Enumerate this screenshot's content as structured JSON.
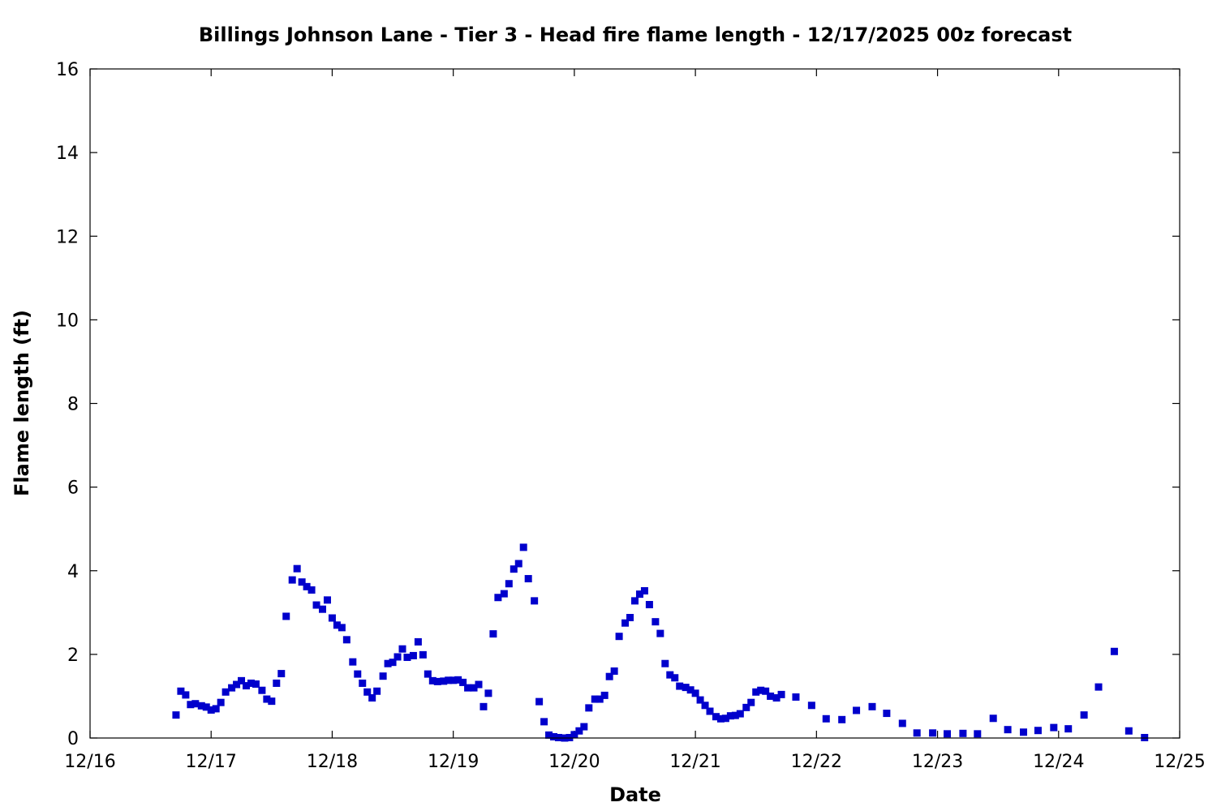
{
  "chart_data": {
    "type": "scatter",
    "title": "Billings Johnson Lane - Tier 3 - Head fire flame length - 12/17/2025 00z forecast",
    "xlabel": "Date",
    "ylabel": "Flame length (ft)",
    "x_unit": "days in December 2025",
    "xlim": [
      16,
      25
    ],
    "ylim": [
      0,
      16
    ],
    "x_ticks": [
      {
        "value": 16,
        "label": "12/16"
      },
      {
        "value": 17,
        "label": "12/17"
      },
      {
        "value": 18,
        "label": "12/18"
      },
      {
        "value": 19,
        "label": "12/19"
      },
      {
        "value": 20,
        "label": "12/20"
      },
      {
        "value": 21,
        "label": "12/21"
      },
      {
        "value": 22,
        "label": "12/22"
      },
      {
        "value": 23,
        "label": "12/23"
      },
      {
        "value": 24,
        "label": "12/24"
      },
      {
        "value": 25,
        "label": "12/25"
      }
    ],
    "y_ticks": [
      {
        "value": 0,
        "label": "0"
      },
      {
        "value": 2,
        "label": "2"
      },
      {
        "value": 4,
        "label": "4"
      },
      {
        "value": 6,
        "label": "6"
      },
      {
        "value": 8,
        "label": "8"
      },
      {
        "value": 10,
        "label": "10"
      },
      {
        "value": 12,
        "label": "12"
      },
      {
        "value": 14,
        "label": "14"
      },
      {
        "value": 16,
        "label": "16"
      }
    ],
    "grid": false,
    "marker_color": "#0000cc",
    "series": [
      {
        "points": [
          [
            16.71,
            0.55
          ],
          [
            16.75,
            1.12
          ],
          [
            16.79,
            1.03
          ],
          [
            16.83,
            0.8
          ],
          [
            16.87,
            0.82
          ],
          [
            16.92,
            0.77
          ],
          [
            16.96,
            0.74
          ],
          [
            17.0,
            0.67
          ],
          [
            17.04,
            0.7
          ],
          [
            17.08,
            0.85
          ],
          [
            17.12,
            1.1
          ],
          [
            17.17,
            1.2
          ],
          [
            17.21,
            1.28
          ],
          [
            17.25,
            1.37
          ],
          [
            17.29,
            1.25
          ],
          [
            17.33,
            1.31
          ],
          [
            17.37,
            1.29
          ],
          [
            17.42,
            1.14
          ],
          [
            17.46,
            0.93
          ],
          [
            17.5,
            0.88
          ],
          [
            17.54,
            1.31
          ],
          [
            17.58,
            1.54
          ],
          [
            17.62,
            2.91
          ],
          [
            17.67,
            3.78
          ],
          [
            17.71,
            4.05
          ],
          [
            17.75,
            3.73
          ],
          [
            17.79,
            3.62
          ],
          [
            17.83,
            3.54
          ],
          [
            17.87,
            3.18
          ],
          [
            17.92,
            3.08
          ],
          [
            17.96,
            3.3
          ],
          [
            18.0,
            2.87
          ],
          [
            18.04,
            2.7
          ],
          [
            18.08,
            2.64
          ],
          [
            18.12,
            2.35
          ],
          [
            18.17,
            1.82
          ],
          [
            18.21,
            1.53
          ],
          [
            18.25,
            1.31
          ],
          [
            18.29,
            1.1
          ],
          [
            18.33,
            0.96
          ],
          [
            18.37,
            1.12
          ],
          [
            18.42,
            1.48
          ],
          [
            18.46,
            1.78
          ],
          [
            18.5,
            1.81
          ],
          [
            18.54,
            1.94
          ],
          [
            18.58,
            2.13
          ],
          [
            18.62,
            1.93
          ],
          [
            18.67,
            1.97
          ],
          [
            18.71,
            2.3
          ],
          [
            18.75,
            1.99
          ],
          [
            18.79,
            1.53
          ],
          [
            18.83,
            1.37
          ],
          [
            18.87,
            1.35
          ],
          [
            18.92,
            1.36
          ],
          [
            18.96,
            1.38
          ],
          [
            19.0,
            1.38
          ],
          [
            19.04,
            1.39
          ],
          [
            19.08,
            1.33
          ],
          [
            19.12,
            1.2
          ],
          [
            19.17,
            1.2
          ],
          [
            19.21,
            1.28
          ],
          [
            19.25,
            0.75
          ],
          [
            19.29,
            1.07
          ],
          [
            19.33,
            2.49
          ],
          [
            19.37,
            3.36
          ],
          [
            19.42,
            3.45
          ],
          [
            19.46,
            3.69
          ],
          [
            19.5,
            4.04
          ],
          [
            19.54,
            4.17
          ],
          [
            19.58,
            4.56
          ],
          [
            19.62,
            3.81
          ],
          [
            19.67,
            3.28
          ],
          [
            19.71,
            0.87
          ],
          [
            19.75,
            0.39
          ],
          [
            19.79,
            0.07
          ],
          [
            19.83,
            0.03
          ],
          [
            19.87,
            0.01
          ],
          [
            19.92,
            0.0
          ],
          [
            19.96,
            0.01
          ],
          [
            20.0,
            0.08
          ],
          [
            20.04,
            0.17
          ],
          [
            20.08,
            0.27
          ],
          [
            20.12,
            0.72
          ],
          [
            20.17,
            0.93
          ],
          [
            20.21,
            0.93
          ],
          [
            20.25,
            1.02
          ],
          [
            20.29,
            1.47
          ],
          [
            20.33,
            1.6
          ],
          [
            20.37,
            2.43
          ],
          [
            20.42,
            2.75
          ],
          [
            20.46,
            2.88
          ],
          [
            20.5,
            3.28
          ],
          [
            20.54,
            3.44
          ],
          [
            20.58,
            3.52
          ],
          [
            20.62,
            3.19
          ],
          [
            20.67,
            2.78
          ],
          [
            20.71,
            2.5
          ],
          [
            20.75,
            1.78
          ],
          [
            20.79,
            1.51
          ],
          [
            20.83,
            1.44
          ],
          [
            20.87,
            1.24
          ],
          [
            20.92,
            1.21
          ],
          [
            20.96,
            1.15
          ],
          [
            21.0,
            1.07
          ],
          [
            21.04,
            0.91
          ],
          [
            21.08,
            0.78
          ],
          [
            21.12,
            0.64
          ],
          [
            21.17,
            0.51
          ],
          [
            21.21,
            0.46
          ],
          [
            21.25,
            0.47
          ],
          [
            21.29,
            0.53
          ],
          [
            21.33,
            0.54
          ],
          [
            21.37,
            0.58
          ],
          [
            21.42,
            0.73
          ],
          [
            21.46,
            0.85
          ],
          [
            21.5,
            1.1
          ],
          [
            21.54,
            1.14
          ],
          [
            21.58,
            1.12
          ],
          [
            21.62,
            1.0
          ],
          [
            21.67,
            0.96
          ],
          [
            21.71,
            1.04
          ],
          [
            21.83,
            0.98
          ],
          [
            21.96,
            0.78
          ],
          [
            22.08,
            0.46
          ],
          [
            22.21,
            0.44
          ],
          [
            22.33,
            0.66
          ],
          [
            22.46,
            0.75
          ],
          [
            22.58,
            0.59
          ],
          [
            22.71,
            0.35
          ],
          [
            22.83,
            0.12
          ],
          [
            22.96,
            0.12
          ],
          [
            23.08,
            0.1
          ],
          [
            23.21,
            0.11
          ],
          [
            23.33,
            0.1
          ],
          [
            23.46,
            0.47
          ],
          [
            23.58,
            0.2
          ],
          [
            23.71,
            0.14
          ],
          [
            23.83,
            0.18
          ],
          [
            23.96,
            0.25
          ],
          [
            24.08,
            0.22
          ],
          [
            24.21,
            0.55
          ],
          [
            24.33,
            1.22
          ],
          [
            24.46,
            2.07
          ],
          [
            24.58,
            0.17
          ],
          [
            24.71,
            0.01
          ]
        ]
      }
    ]
  }
}
